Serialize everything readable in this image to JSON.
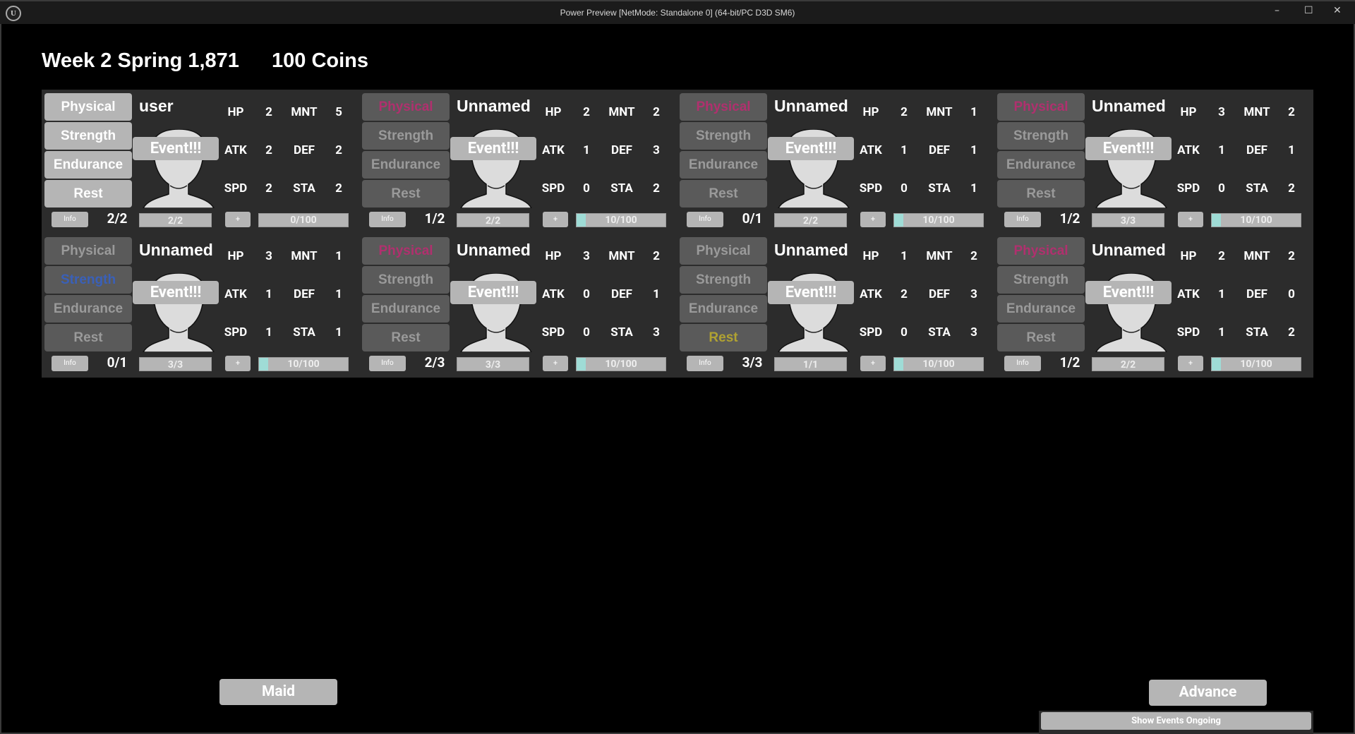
{
  "window": {
    "title": "Power Preview [NetMode: Standalone 0]  (64-bit/PC D3D SM6)",
    "minimize": "–",
    "maximize": "☐",
    "close": "✕"
  },
  "header": {
    "date": "Week 2 Spring 1,871",
    "coins": "100 Coins"
  },
  "training_options": [
    "Physical",
    "Strength",
    "Endurance",
    "Rest"
  ],
  "event_label": "Event!!!",
  "info_label": "Info",
  "plus_label": "+",
  "stat_labels": [
    "HP",
    "MNT",
    "ATK",
    "DEF",
    "SPD",
    "STA"
  ],
  "highlight_colors": {
    "pink": "#b0306e",
    "blue": "#3a60b8",
    "yellow": "#b0a232"
  },
  "cards": [
    {
      "name": "user",
      "stats": {
        "HP": 2,
        "MNT": 5,
        "ATK": 2,
        "DEF": 2,
        "SPD": 2,
        "STA": 2
      },
      "count": "2/2",
      "bar": "2/2",
      "progress": "0/100",
      "progress_value": 0,
      "all_active": true,
      "highlight": null
    },
    {
      "name": "Unnamed",
      "stats": {
        "HP": 2,
        "MNT": 2,
        "ATK": 1,
        "DEF": 3,
        "SPD": 0,
        "STA": 2
      },
      "count": "1/2",
      "bar": "2/2",
      "progress": "10/100",
      "progress_value": 10,
      "highlight": {
        "option": "Physical",
        "color": "pink"
      }
    },
    {
      "name": "Unnamed",
      "stats": {
        "HP": 2,
        "MNT": 1,
        "ATK": 1,
        "DEF": 1,
        "SPD": 0,
        "STA": 1
      },
      "count": "0/1",
      "bar": "2/2",
      "progress": "10/100",
      "progress_value": 10,
      "highlight": {
        "option": "Physical",
        "color": "pink"
      }
    },
    {
      "name": "Unnamed",
      "stats": {
        "HP": 3,
        "MNT": 2,
        "ATK": 1,
        "DEF": 1,
        "SPD": 0,
        "STA": 2
      },
      "count": "1/2",
      "bar": "3/3",
      "progress": "10/100",
      "progress_value": 10,
      "highlight": {
        "option": "Physical",
        "color": "pink"
      }
    },
    {
      "name": "Unnamed",
      "stats": {
        "HP": 3,
        "MNT": 1,
        "ATK": 1,
        "DEF": 1,
        "SPD": 1,
        "STA": 1
      },
      "count": "0/1",
      "bar": "3/3",
      "progress": "10/100",
      "progress_value": 10,
      "highlight": {
        "option": "Strength",
        "color": "blue"
      }
    },
    {
      "name": "Unnamed",
      "stats": {
        "HP": 3,
        "MNT": 2,
        "ATK": 0,
        "DEF": 1,
        "SPD": 0,
        "STA": 3
      },
      "count": "2/3",
      "bar": "3/3",
      "progress": "10/100",
      "progress_value": 10,
      "highlight": {
        "option": "Physical",
        "color": "pink"
      }
    },
    {
      "name": "Unnamed",
      "stats": {
        "HP": 1,
        "MNT": 2,
        "ATK": 2,
        "DEF": 3,
        "SPD": 0,
        "STA": 3
      },
      "count": "3/3",
      "bar": "1/1",
      "progress": "10/100",
      "progress_value": 10,
      "highlight": {
        "option": "Rest",
        "color": "yellow"
      }
    },
    {
      "name": "Unnamed",
      "stats": {
        "HP": 2,
        "MNT": 2,
        "ATK": 1,
        "DEF": 0,
        "SPD": 1,
        "STA": 2
      },
      "count": "1/2",
      "bar": "2/2",
      "progress": "10/100",
      "progress_value": 10,
      "highlight": {
        "option": "Physical",
        "color": "pink"
      }
    }
  ],
  "footer": {
    "maid": "Maid",
    "advance": "Advance",
    "show_events": "Show Events Ongoing"
  }
}
